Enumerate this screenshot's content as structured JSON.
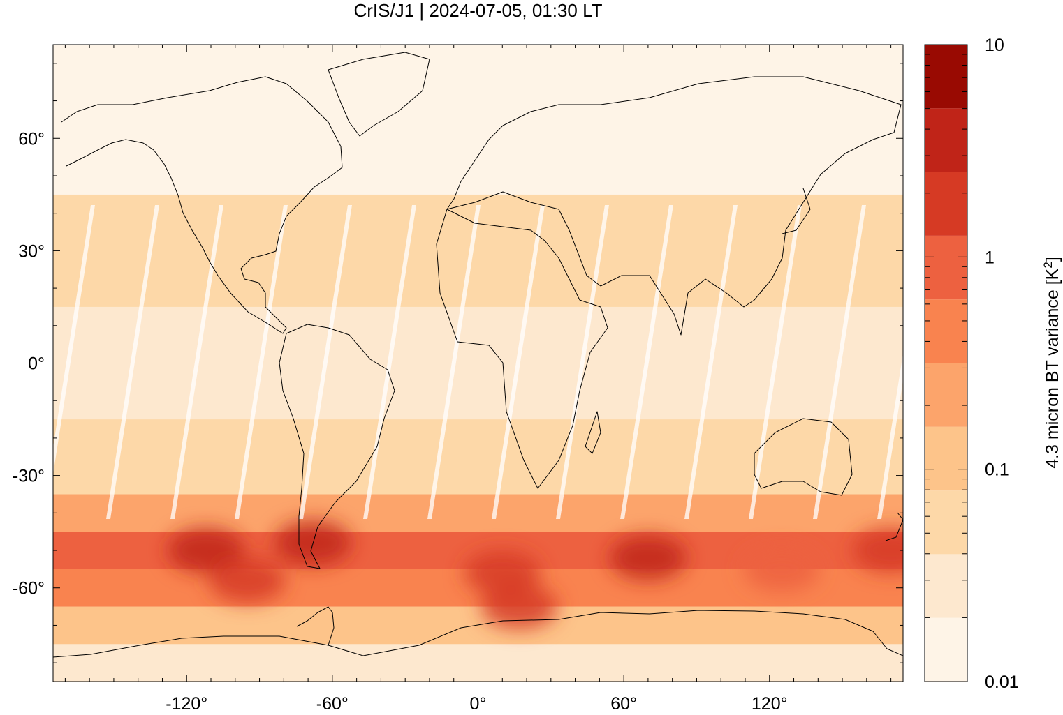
{
  "chart_data": {
    "type": "heatmap",
    "title": "CrIS/J1 | 2024-07-05, 01:30 LT",
    "xlabel": "",
    "ylabel": "",
    "colorbar_label_main": "4.3 micron BT variance [K",
    "colorbar_label_sup": "2",
    "colorbar_label_end": "]",
    "xlim": [
      -175,
      175
    ],
    "ylim": [
      -85,
      85
    ],
    "x_ticks": [
      {
        "value": -120,
        "label": "-120°"
      },
      {
        "value": -60,
        "label": "-60°"
      },
      {
        "value": 0,
        "label": "0°"
      },
      {
        "value": 60,
        "label": "60°"
      },
      {
        "value": 120,
        "label": "120°"
      }
    ],
    "y_ticks": [
      {
        "value": 60,
        "label": "60°"
      },
      {
        "value": 30,
        "label": "30°"
      },
      {
        "value": 0,
        "label": "0°"
      },
      {
        "value": -30,
        "label": "-30°"
      },
      {
        "value": -60,
        "label": "-60°"
      }
    ],
    "colorbar": {
      "scale": "log",
      "range": [
        0.01,
        10
      ],
      "tick_labels": [
        {
          "value": 10,
          "label": "10"
        },
        {
          "value": 1,
          "label": "1"
        },
        {
          "value": 0.1,
          "label": "0.1"
        },
        {
          "value": 0.01,
          "label": "0.01"
        }
      ],
      "levels": [
        "#fef4e7",
        "#fde8cf",
        "#fdd8a8",
        "#fdc48a",
        "#fca46b",
        "#f9834f",
        "#ed6140",
        "#d63a24",
        "#c02418",
        "#990a02"
      ]
    },
    "latitude_bands": [
      {
        "lat_min": -85,
        "lat_max": -75,
        "value": 0.03
      },
      {
        "lat_min": -75,
        "lat_max": -65,
        "value": 0.15
      },
      {
        "lat_min": -65,
        "lat_max": -55,
        "value": 0.6
      },
      {
        "lat_min": -55,
        "lat_max": -45,
        "value": 0.9
      },
      {
        "lat_min": -45,
        "lat_max": -35,
        "value": 0.25
      },
      {
        "lat_min": -35,
        "lat_max": -15,
        "value": 0.04
      },
      {
        "lat_min": -15,
        "lat_max": 15,
        "value": 0.03
      },
      {
        "lat_min": 15,
        "lat_max": 45,
        "value": 0.04
      },
      {
        "lat_min": 45,
        "lat_max": 85,
        "value": 0.015
      }
    ],
    "hotspots": [
      {
        "lon": -68,
        "lat": -48,
        "value": 4.0
      },
      {
        "lon": -112,
        "lat": -50,
        "value": 3.0
      },
      {
        "lon": -95,
        "lat": -58,
        "value": 1.5
      },
      {
        "lon": 10,
        "lat": -56,
        "value": 1.8
      },
      {
        "lon": 17,
        "lat": -65,
        "value": 2.0
      },
      {
        "lon": 70,
        "lat": -52,
        "value": 5.0
      },
      {
        "lon": 125,
        "lat": -55,
        "value": 1.2
      },
      {
        "lon": 170,
        "lat": -50,
        "value": 1.5
      }
    ]
  }
}
